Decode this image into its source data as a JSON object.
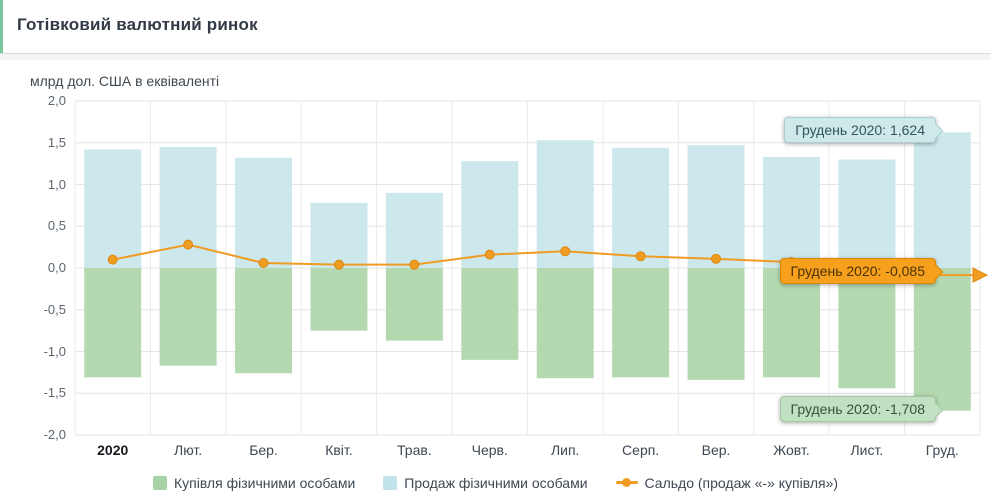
{
  "header": {
    "title": "Готівковий валютний ринок"
  },
  "chart": {
    "units_label": "млрд дол. США в еквіваленті",
    "y_ticks": [
      "2,0",
      "1,5",
      "1,0",
      "0,5",
      "0,0",
      "-0,5",
      "-1,0",
      "-1,5",
      "-2,0"
    ],
    "x_labels": [
      "2020",
      "Лют.",
      "Бер.",
      "Квіт.",
      "Трав.",
      "Черв.",
      "Лип.",
      "Серп.",
      "Вер.",
      "Жовт.",
      "Лист.",
      "Груд."
    ],
    "tooltips": {
      "sales": "Грудень 2020: 1,624",
      "saldo": "Грудень 2020: -0,085",
      "purchase": "Грудень 2020: -1,708"
    },
    "legend": [
      {
        "label": "Купівля фізичними особами",
        "color": "#a6d3a6",
        "marker": "square"
      },
      {
        "label": "Продаж фізичними особами",
        "color": "#c2e3e9",
        "marker": "square"
      },
      {
        "label": "Сальдо (продаж «-» купівля»)",
        "color": "#f09c23",
        "marker": "line-dot"
      }
    ]
  },
  "chart_data": {
    "type": "bar",
    "subtype": "positive-negative-bars-with-balance-line",
    "title": "Готівковий валютний ринок",
    "ylabel": "млрд дол. США в еквіваленті",
    "categories": [
      "2020",
      "Лют.",
      "Бер.",
      "Квіт.",
      "Трав.",
      "Черв.",
      "Лип.",
      "Серп.",
      "Вер.",
      "Жовт.",
      "Лист.",
      "Груд."
    ],
    "series": [
      {
        "name": "Продаж фізичними особами",
        "type": "bar",
        "color": "#cde8ec",
        "values": [
          1.42,
          1.45,
          1.32,
          0.78,
          0.9,
          1.28,
          1.53,
          1.44,
          1.47,
          1.33,
          1.3,
          1.624
        ]
      },
      {
        "name": "Купівля фізичними особами",
        "type": "bar",
        "color": "#b4d9b1",
        "values": [
          -1.31,
          -1.17,
          -1.26,
          -0.75,
          -0.87,
          -1.1,
          -1.32,
          -1.31,
          -1.34,
          -1.31,
          -1.44,
          -1.708
        ]
      },
      {
        "name": "Сальдо (продаж «-» купівля»)",
        "type": "line",
        "color": "#f09c23",
        "values": [
          0.1,
          0.28,
          0.06,
          0.04,
          0.04,
          0.16,
          0.2,
          0.14,
          0.11,
          0.07,
          -0.04,
          -0.085
        ]
      }
    ],
    "ylim": [
      -2.0,
      2.0
    ],
    "ytick_step": 0.5,
    "grid": true,
    "legend_position": "bottom",
    "annotations": [
      {
        "text": "Грудень 2020: 1,624",
        "series": "Продаж фізичними особами",
        "category": "Груд."
      },
      {
        "text": "Грудень 2020: -0,085",
        "series": "Сальдо (продаж «-» купівля»)",
        "category": "Груд."
      },
      {
        "text": "Грудень 2020: -1,708",
        "series": "Купівля фізичними особами",
        "category": "Груд."
      }
    ]
  }
}
